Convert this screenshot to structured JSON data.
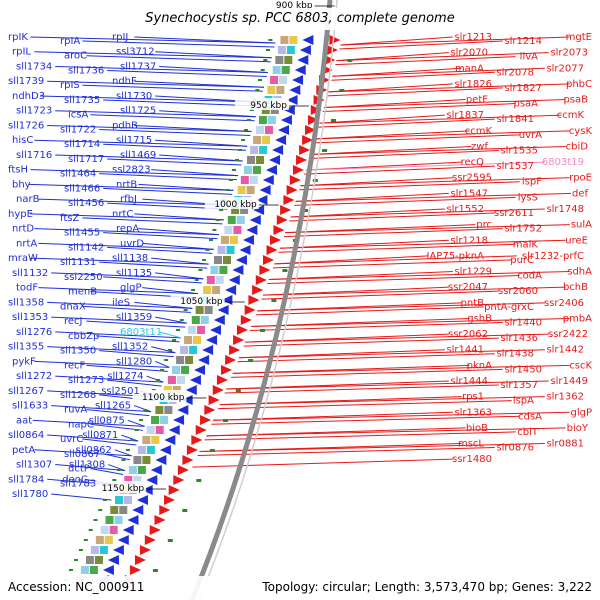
{
  "title": "Synechocystis sp. PCC 6803, complete genome",
  "accession_text": "Accession: NC_000911",
  "summary_text": "Topology: circular; Length: 3,573,470 bp; Genes: 3,222",
  "colors": {
    "reverse_strand": "#1f2fd6",
    "forward_strand": "#e81818",
    "highlight": "#35c8e8",
    "highlight_fwd": "#f08ac8",
    "backbone": "#8a8a8a"
  },
  "position_labels": [
    {
      "text": "900 kbp"
    },
    {
      "text": "950 kbp"
    },
    {
      "text": "1000 kbp"
    },
    {
      "text": "1050 kbp"
    },
    {
      "text": "1100 kbp"
    },
    {
      "text": "1150 kbp"
    }
  ],
  "left_genes": [
    "rpIK",
    "rpIA",
    "rpIJ",
    "rpIL",
    "aroC",
    "ssl3712",
    "sll1734",
    "sll1736",
    "sll1737",
    "sll1739",
    "rpIS",
    "ndhF",
    "ndhD3",
    "sll1735",
    "sll1730",
    "sll1723",
    "icsA",
    "sll1725",
    "sll1726",
    "sll1722",
    "pdhB",
    "hisC",
    "sll1714",
    "sll1715",
    "sll1716",
    "sll1717",
    "sll1469",
    "ftsH",
    "sll1464",
    "ssl2823",
    "bhy",
    "sll1466",
    "nrtB",
    "narB",
    "sll1456",
    "rfbJ",
    "hypE",
    "ftsZ",
    "nrtC",
    "nrtD",
    "sll1455",
    "repA",
    "nrtA",
    "sll1142",
    "uvrD",
    "mraW",
    "sll1131",
    "sll1138",
    "sll1132",
    "ssl2250",
    "sll1135",
    "todF",
    "menB",
    "glgP",
    "sll1358",
    "dnaX",
    "ileS",
    "sll1353",
    "recJ",
    "sll1359",
    "sll1276",
    "cbbZp",
    "6803t11",
    "sll1355",
    "sll1350",
    "sll1352",
    "pykF",
    "recF",
    "sll1280",
    "sll1272",
    "sll1273",
    "sll1274",
    "sll1267",
    "sll1268",
    "ssl2501",
    "sll1633",
    "ruvA",
    "sll1265",
    "aat",
    "napC",
    "sll0875",
    "sll0864",
    "uvrC",
    "sll0871",
    "petA",
    "sll0867",
    "sll0862",
    "sll1307",
    "dctP",
    "sll1308",
    "sll1784",
    "sll1783",
    "deoC",
    "sll1780"
  ],
  "right_genes": [
    "slr1213",
    "slr1214",
    "mgtE",
    "slr2070",
    "ilvA",
    "slr2073",
    "manA",
    "slr2078",
    "slr2077",
    "slr1826",
    "slr1827",
    "phbC",
    "petF",
    "psaA",
    "psaB",
    "slr1837",
    "slr1841",
    "ccmK",
    "ccmK",
    "uvrA",
    "cysK",
    "zwf",
    "slr1535",
    "cbiD",
    "recQ",
    "slr1537",
    "6803t19",
    "ssr2595",
    "ispF",
    "rpoE",
    "slr1547",
    "lysS",
    "def",
    "slr1552",
    "ssr2611",
    "slr1748",
    "prc",
    "slr1752",
    "sulA",
    "slr1218",
    "malK",
    "ureE",
    "IAP75-pknA",
    "purC",
    "slr1232-prfC",
    "slr1229",
    "codA",
    "sdhA",
    "ssr2047",
    "ssr2060",
    "bchB",
    "pntB",
    "pntA-grxC",
    "ssr2406",
    "gshB",
    "slr1440",
    "pmbA",
    "ssr2062",
    "slr1436",
    "ssr2422",
    "slr1441",
    "slr1438",
    "slr1442",
    "pknA",
    "slr1450",
    "cscK",
    "slr1444",
    "slr1357",
    "slr1449",
    "rps1",
    "lspA",
    "slr1362",
    "slr1363",
    "cdsA",
    "glgP",
    "bioB",
    "cbiT",
    "bioY",
    "mscL",
    "slr0876",
    "slr0881",
    "ssr1480"
  ]
}
